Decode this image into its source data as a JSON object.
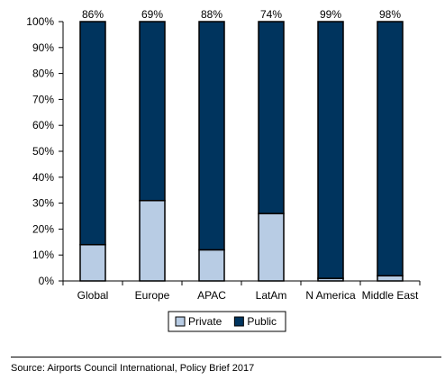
{
  "chart_data": {
    "type": "bar",
    "stacked": true,
    "categories": [
      "Global",
      "Europe",
      "APAC",
      "LatAm",
      "N America",
      "Middle East"
    ],
    "series": [
      {
        "name": "Private",
        "values": [
          14,
          31,
          12,
          26,
          1,
          2
        ]
      },
      {
        "name": "Public",
        "values": [
          86,
          69,
          88,
          74,
          99,
          98
        ]
      }
    ],
    "top_labels": [
      "86%",
      "69%",
      "88%",
      "74%",
      "99%",
      "98%"
    ],
    "y_ticks": [
      "0%",
      "10%",
      "20%",
      "30%",
      "40%",
      "50%",
      "60%",
      "70%",
      "80%",
      "90%",
      "100%"
    ],
    "ylim": [
      0,
      100
    ],
    "grid": false,
    "legend_position": "bottom",
    "colors": {
      "Private": "#b8cce4",
      "Public": "#00345e"
    }
  },
  "source": "Source: Airports Council International, Policy Brief 2017"
}
